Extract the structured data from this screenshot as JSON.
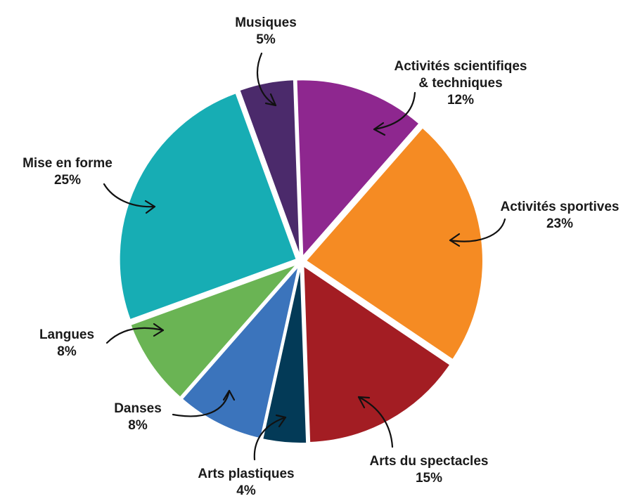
{
  "chart_data": {
    "type": "pie",
    "unit": "%",
    "slices": [
      {
        "label": "Activités scientifiqes & techniques",
        "label_lines": [
          "Activités scientifiqes",
          "& techniques"
        ],
        "value": 12,
        "value_label": "12%",
        "color": "#8e278f"
      },
      {
        "label": "Activités sportives",
        "label_lines": [
          "Activités sportives"
        ],
        "value": 23,
        "value_label": "23%",
        "color": "#f58b23"
      },
      {
        "label": "Arts du spectacles",
        "label_lines": [
          "Arts du spectacles"
        ],
        "value": 15,
        "value_label": "15%",
        "color": "#a31d23"
      },
      {
        "label": "Arts plastiques",
        "label_lines": [
          "Arts plastiques"
        ],
        "value": 4,
        "value_label": "4%",
        "color": "#033a57"
      },
      {
        "label": "Danses",
        "label_lines": [
          "Danses"
        ],
        "value": 8,
        "value_label": "8%",
        "color": "#3b74bc"
      },
      {
        "label": "Langues",
        "label_lines": [
          "Langues"
        ],
        "value": 8,
        "value_label": "8%",
        "color": "#6ab454"
      },
      {
        "label": "Mise en forme",
        "label_lines": [
          "Mise en forme"
        ],
        "value": 25,
        "value_label": "25%",
        "color": "#17adb4"
      },
      {
        "label": "Musiques",
        "label_lines": [
          "Musiques"
        ],
        "value": 5,
        "value_label": "5%",
        "color": "#4b2a6b"
      }
    ]
  }
}
